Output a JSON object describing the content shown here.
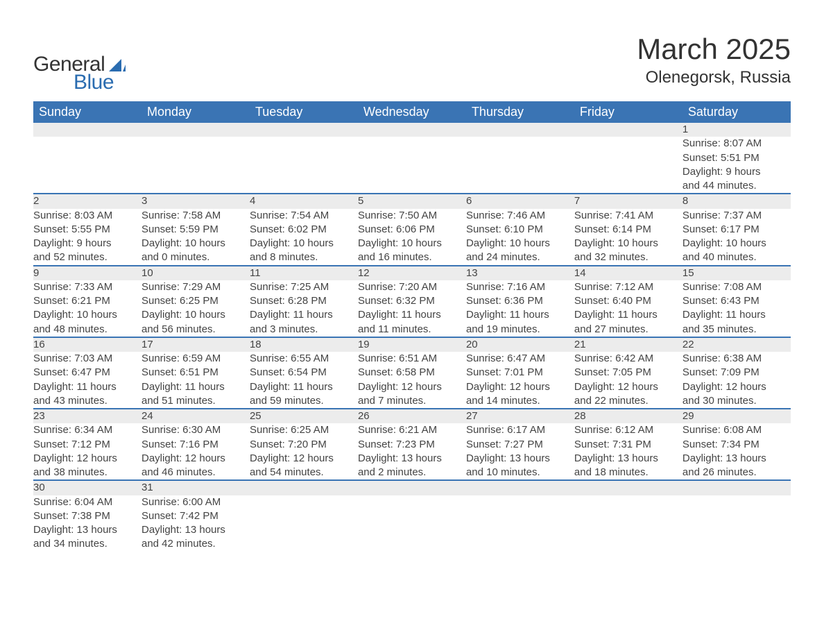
{
  "brand": {
    "line1": "General",
    "line2": "Blue",
    "icon_color": "#2a6cb0"
  },
  "title": "March 2025",
  "location": "Olenegorsk, Russia",
  "colors": {
    "header_bg": "#3a74b4",
    "header_text": "#ffffff",
    "daynum_bg": "#ececec",
    "row_divider": "#3a74b4",
    "body_text": "#444444"
  },
  "day_headers": [
    "Sunday",
    "Monday",
    "Tuesday",
    "Wednesday",
    "Thursday",
    "Friday",
    "Saturday"
  ],
  "weeks": [
    {
      "nums": [
        "",
        "",
        "",
        "",
        "",
        "",
        "1"
      ],
      "cells": [
        null,
        null,
        null,
        null,
        null,
        null,
        {
          "sunrise": "Sunrise: 8:07 AM",
          "sunset": "Sunset: 5:51 PM",
          "d1": "Daylight: 9 hours",
          "d2": "and 44 minutes."
        }
      ]
    },
    {
      "nums": [
        "2",
        "3",
        "4",
        "5",
        "6",
        "7",
        "8"
      ],
      "cells": [
        {
          "sunrise": "Sunrise: 8:03 AM",
          "sunset": "Sunset: 5:55 PM",
          "d1": "Daylight: 9 hours",
          "d2": "and 52 minutes."
        },
        {
          "sunrise": "Sunrise: 7:58 AM",
          "sunset": "Sunset: 5:59 PM",
          "d1": "Daylight: 10 hours",
          "d2": "and 0 minutes."
        },
        {
          "sunrise": "Sunrise: 7:54 AM",
          "sunset": "Sunset: 6:02 PM",
          "d1": "Daylight: 10 hours",
          "d2": "and 8 minutes."
        },
        {
          "sunrise": "Sunrise: 7:50 AM",
          "sunset": "Sunset: 6:06 PM",
          "d1": "Daylight: 10 hours",
          "d2": "and 16 minutes."
        },
        {
          "sunrise": "Sunrise: 7:46 AM",
          "sunset": "Sunset: 6:10 PM",
          "d1": "Daylight: 10 hours",
          "d2": "and 24 minutes."
        },
        {
          "sunrise": "Sunrise: 7:41 AM",
          "sunset": "Sunset: 6:14 PM",
          "d1": "Daylight: 10 hours",
          "d2": "and 32 minutes."
        },
        {
          "sunrise": "Sunrise: 7:37 AM",
          "sunset": "Sunset: 6:17 PM",
          "d1": "Daylight: 10 hours",
          "d2": "and 40 minutes."
        }
      ]
    },
    {
      "nums": [
        "9",
        "10",
        "11",
        "12",
        "13",
        "14",
        "15"
      ],
      "cells": [
        {
          "sunrise": "Sunrise: 7:33 AM",
          "sunset": "Sunset: 6:21 PM",
          "d1": "Daylight: 10 hours",
          "d2": "and 48 minutes."
        },
        {
          "sunrise": "Sunrise: 7:29 AM",
          "sunset": "Sunset: 6:25 PM",
          "d1": "Daylight: 10 hours",
          "d2": "and 56 minutes."
        },
        {
          "sunrise": "Sunrise: 7:25 AM",
          "sunset": "Sunset: 6:28 PM",
          "d1": "Daylight: 11 hours",
          "d2": "and 3 minutes."
        },
        {
          "sunrise": "Sunrise: 7:20 AM",
          "sunset": "Sunset: 6:32 PM",
          "d1": "Daylight: 11 hours",
          "d2": "and 11 minutes."
        },
        {
          "sunrise": "Sunrise: 7:16 AM",
          "sunset": "Sunset: 6:36 PM",
          "d1": "Daylight: 11 hours",
          "d2": "and 19 minutes."
        },
        {
          "sunrise": "Sunrise: 7:12 AM",
          "sunset": "Sunset: 6:40 PM",
          "d1": "Daylight: 11 hours",
          "d2": "and 27 minutes."
        },
        {
          "sunrise": "Sunrise: 7:08 AM",
          "sunset": "Sunset: 6:43 PM",
          "d1": "Daylight: 11 hours",
          "d2": "and 35 minutes."
        }
      ]
    },
    {
      "nums": [
        "16",
        "17",
        "18",
        "19",
        "20",
        "21",
        "22"
      ],
      "cells": [
        {
          "sunrise": "Sunrise: 7:03 AM",
          "sunset": "Sunset: 6:47 PM",
          "d1": "Daylight: 11 hours",
          "d2": "and 43 minutes."
        },
        {
          "sunrise": "Sunrise: 6:59 AM",
          "sunset": "Sunset: 6:51 PM",
          "d1": "Daylight: 11 hours",
          "d2": "and 51 minutes."
        },
        {
          "sunrise": "Sunrise: 6:55 AM",
          "sunset": "Sunset: 6:54 PM",
          "d1": "Daylight: 11 hours",
          "d2": "and 59 minutes."
        },
        {
          "sunrise": "Sunrise: 6:51 AM",
          "sunset": "Sunset: 6:58 PM",
          "d1": "Daylight: 12 hours",
          "d2": "and 7 minutes."
        },
        {
          "sunrise": "Sunrise: 6:47 AM",
          "sunset": "Sunset: 7:01 PM",
          "d1": "Daylight: 12 hours",
          "d2": "and 14 minutes."
        },
        {
          "sunrise": "Sunrise: 6:42 AM",
          "sunset": "Sunset: 7:05 PM",
          "d1": "Daylight: 12 hours",
          "d2": "and 22 minutes."
        },
        {
          "sunrise": "Sunrise: 6:38 AM",
          "sunset": "Sunset: 7:09 PM",
          "d1": "Daylight: 12 hours",
          "d2": "and 30 minutes."
        }
      ]
    },
    {
      "nums": [
        "23",
        "24",
        "25",
        "26",
        "27",
        "28",
        "29"
      ],
      "cells": [
        {
          "sunrise": "Sunrise: 6:34 AM",
          "sunset": "Sunset: 7:12 PM",
          "d1": "Daylight: 12 hours",
          "d2": "and 38 minutes."
        },
        {
          "sunrise": "Sunrise: 6:30 AM",
          "sunset": "Sunset: 7:16 PM",
          "d1": "Daylight: 12 hours",
          "d2": "and 46 minutes."
        },
        {
          "sunrise": "Sunrise: 6:25 AM",
          "sunset": "Sunset: 7:20 PM",
          "d1": "Daylight: 12 hours",
          "d2": "and 54 minutes."
        },
        {
          "sunrise": "Sunrise: 6:21 AM",
          "sunset": "Sunset: 7:23 PM",
          "d1": "Daylight: 13 hours",
          "d2": "and 2 minutes."
        },
        {
          "sunrise": "Sunrise: 6:17 AM",
          "sunset": "Sunset: 7:27 PM",
          "d1": "Daylight: 13 hours",
          "d2": "and 10 minutes."
        },
        {
          "sunrise": "Sunrise: 6:12 AM",
          "sunset": "Sunset: 7:31 PM",
          "d1": "Daylight: 13 hours",
          "d2": "and 18 minutes."
        },
        {
          "sunrise": "Sunrise: 6:08 AM",
          "sunset": "Sunset: 7:34 PM",
          "d1": "Daylight: 13 hours",
          "d2": "and 26 minutes."
        }
      ]
    },
    {
      "nums": [
        "30",
        "31",
        "",
        "",
        "",
        "",
        ""
      ],
      "cells": [
        {
          "sunrise": "Sunrise: 6:04 AM",
          "sunset": "Sunset: 7:38 PM",
          "d1": "Daylight: 13 hours",
          "d2": "and 34 minutes."
        },
        {
          "sunrise": "Sunrise: 6:00 AM",
          "sunset": "Sunset: 7:42 PM",
          "d1": "Daylight: 13 hours",
          "d2": "and 42 minutes."
        },
        null,
        null,
        null,
        null,
        null
      ]
    }
  ]
}
